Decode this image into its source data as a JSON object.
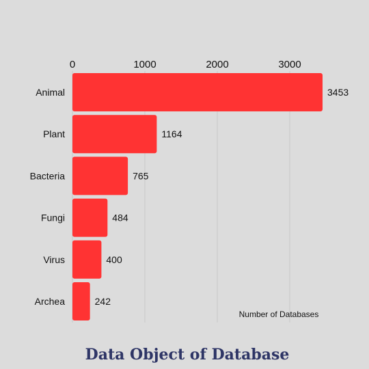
{
  "chart_data": {
    "type": "bar",
    "orientation": "horizontal",
    "title": "Data Object of Database",
    "xlabel": "Number of Databases",
    "categories": [
      "Animal",
      "Plant",
      "Bacteria",
      "Fungi",
      "Virus",
      "Archea"
    ],
    "values": [
      3453,
      1164,
      765,
      484,
      400,
      242
    ],
    "xticks": [
      0,
      1000,
      2000,
      3000
    ],
    "xlim": [
      0,
      3500
    ],
    "grid": "vertical",
    "axis_position": "top"
  },
  "colors": {
    "background": "#dcdcdc",
    "bar": "#ff3333",
    "title": "#2e3566",
    "grid": "#c8c8c8"
  }
}
